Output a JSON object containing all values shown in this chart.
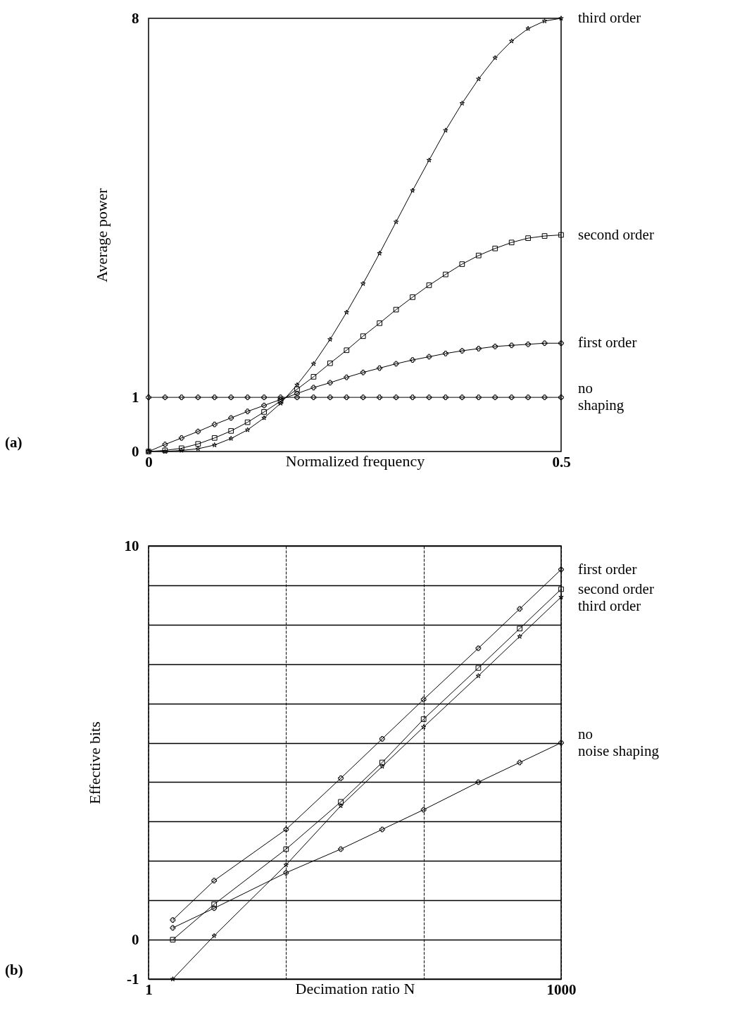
{
  "chart_data": [
    {
      "type": "line",
      "xlabel": "Normalized frequency",
      "ylabel": "Average power",
      "annotations": [
        "(a)"
      ],
      "x": [
        0,
        0.02,
        0.04,
        0.06,
        0.08,
        0.1,
        0.12,
        0.14,
        0.16,
        0.18,
        0.2,
        0.22,
        0.24,
        0.26,
        0.28,
        0.3,
        0.32,
        0.34,
        0.36,
        0.38,
        0.4,
        0.42,
        0.44,
        0.46,
        0.48,
        0.5
      ],
      "xlim": [
        0,
        0.5
      ],
      "xticks": [
        0,
        0.5
      ],
      "ylim": [
        0,
        8
      ],
      "yticks": [
        0,
        1,
        8
      ],
      "grid": false,
      "series": [
        {
          "name": "no\nshaping",
          "color": "#000000",
          "marker": "cross",
          "values": [
            1,
            1,
            1,
            1,
            1,
            1,
            1,
            1,
            1,
            1,
            1,
            1,
            1,
            1,
            1,
            1,
            1,
            1,
            1,
            1,
            1,
            1,
            1,
            1,
            1,
            1
          ]
        },
        {
          "name": "first order",
          "color": "#000000",
          "marker": "cross",
          "values": [
            0,
            0.13,
            0.25,
            0.37,
            0.5,
            0.62,
            0.74,
            0.85,
            0.96,
            1.07,
            1.18,
            1.27,
            1.37,
            1.46,
            1.54,
            1.62,
            1.69,
            1.75,
            1.81,
            1.86,
            1.9,
            1.94,
            1.96,
            1.98,
            2.0,
            2.0
          ]
        },
        {
          "name": "second order",
          "color": "#000000",
          "marker": "square",
          "values": [
            0,
            0.02,
            0.06,
            0.14,
            0.25,
            0.38,
            0.54,
            0.73,
            0.93,
            1.15,
            1.38,
            1.63,
            1.87,
            2.13,
            2.37,
            2.62,
            2.85,
            3.07,
            3.27,
            3.46,
            3.62,
            3.75,
            3.86,
            3.94,
            3.98,
            4.0
          ]
        },
        {
          "name": "third order",
          "color": "#000000",
          "marker": "star",
          "values": [
            0,
            0.0,
            0.02,
            0.05,
            0.12,
            0.24,
            0.4,
            0.62,
            0.89,
            1.23,
            1.62,
            2.07,
            2.57,
            3.1,
            3.66,
            4.24,
            4.82,
            5.38,
            5.93,
            6.43,
            6.88,
            7.27,
            7.58,
            7.81,
            7.95,
            8.0
          ]
        }
      ]
    },
    {
      "type": "line",
      "xlabel": "Decimation ratio N",
      "ylabel": "Effective bits",
      "annotations": [
        "(b)"
      ],
      "log": "x",
      "x": [
        1.5,
        3,
        10,
        25,
        50,
        100,
        250,
        500,
        1000
      ],
      "xlim": [
        1,
        1000
      ],
      "xticks": [
        1,
        {
          "value": 10,
          "label": null
        },
        {
          "value": 100,
          "label": null
        },
        1000
      ],
      "ylim": [
        -1,
        10
      ],
      "yticks": [
        -1,
        0,
        {
          "value": 1,
          "label": null
        },
        {
          "value": 2,
          "label": null
        },
        {
          "value": 3,
          "label": null
        },
        {
          "value": 4,
          "label": null
        },
        {
          "value": 5,
          "label": null
        },
        {
          "value": 6,
          "label": null
        },
        {
          "value": 7,
          "label": null
        },
        {
          "value": 8,
          "label": null
        },
        {
          "value": 9,
          "label": null
        },
        10
      ],
      "grid": true,
      "series": [
        {
          "name": "first order",
          "color": "#000000",
          "marker": "cross",
          "values": [
            0.5,
            1.5,
            2.8,
            4.1,
            5.1,
            6.1,
            7.4,
            8.4,
            9.4
          ]
        },
        {
          "name": "second order",
          "color": "#000000",
          "marker": "square",
          "values": [
            0,
            0.9,
            2.3,
            3.5,
            4.5,
            5.6,
            6.9,
            7.9,
            8.9
          ]
        },
        {
          "name": "third order",
          "color": "#000000",
          "marker": "star",
          "values": [
            -1,
            0.1,
            1.9,
            3.4,
            4.4,
            5.4,
            6.7,
            7.7,
            8.7
          ]
        },
        {
          "name": "no\nnoise shaping",
          "color": "#000000",
          "marker": "cross",
          "values": [
            0.3,
            0.8,
            1.7,
            2.3,
            2.8,
            3.3,
            4.0,
            4.5,
            5.0
          ]
        }
      ]
    }
  ]
}
